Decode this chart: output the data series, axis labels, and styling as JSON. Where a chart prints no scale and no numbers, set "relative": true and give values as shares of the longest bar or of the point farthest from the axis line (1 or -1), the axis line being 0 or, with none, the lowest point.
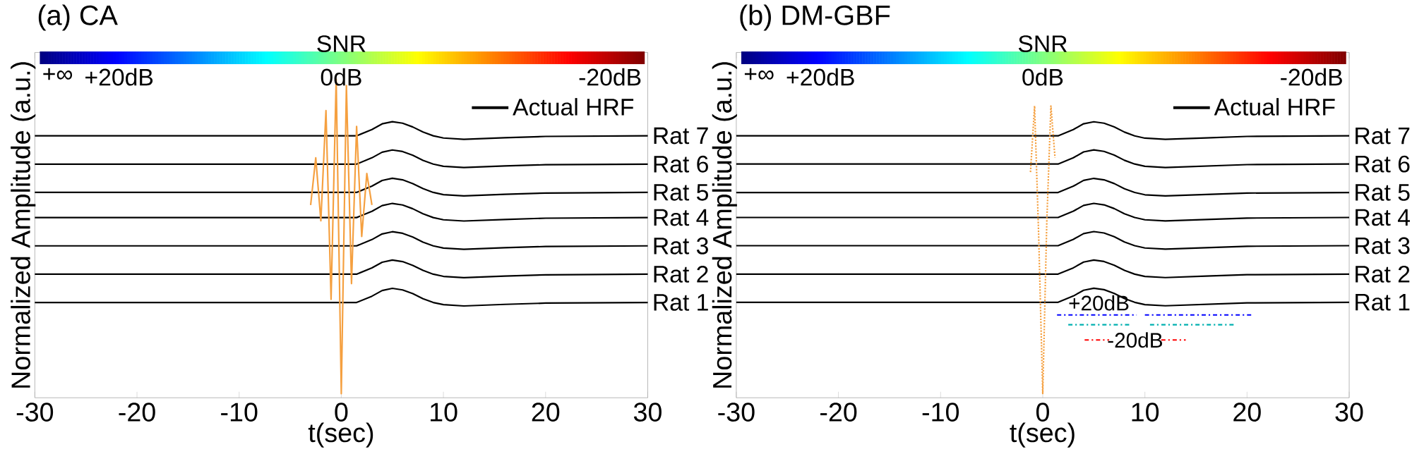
{
  "chart_data": [
    {
      "type": "line",
      "title": "(a) CA",
      "xlabel": "t(sec)",
      "ylabel": "Normalized Amplitude (a.u.)",
      "relative": true,
      "xlim": [
        -30,
        30
      ],
      "xticks": [
        -30,
        -20,
        -10,
        0,
        10,
        20,
        30
      ],
      "legend": "top right",
      "series": [
        {
          "name": "Actual HRF",
          "color": "#000000",
          "x": [
            -30,
            1.5,
            3,
            4,
            5,
            6,
            7,
            8,
            9,
            10,
            12,
            16,
            20,
            30
          ],
          "values": [
            0.82,
            0.82,
            0.84,
            0.858,
            0.865,
            0.86,
            0.848,
            0.832,
            0.82,
            0.813,
            0.809,
            0.814,
            0.818,
            0.82
          ]
        },
        {
          "color": "#000000",
          "x": [
            -30,
            1.5,
            3,
            4,
            5,
            6,
            7,
            8,
            9,
            10,
            12,
            16,
            20,
            30
          ],
          "values": [
            0.73,
            0.73,
            0.75,
            0.768,
            0.775,
            0.77,
            0.758,
            0.742,
            0.73,
            0.723,
            0.719,
            0.724,
            0.728,
            0.73
          ]
        },
        {
          "color": "#000000",
          "x": [
            -30,
            1.5,
            3,
            4,
            5,
            6,
            7,
            8,
            9,
            10,
            12,
            16,
            20,
            30
          ],
          "values": [
            0.64,
            0.64,
            0.66,
            0.678,
            0.685,
            0.68,
            0.668,
            0.652,
            0.64,
            0.633,
            0.629,
            0.634,
            0.638,
            0.64
          ]
        },
        {
          "color": "#000000",
          "x": [
            -30,
            1.5,
            3,
            4,
            5,
            6,
            7,
            8,
            9,
            10,
            12,
            16,
            20,
            30
          ],
          "values": [
            0.56,
            0.56,
            0.58,
            0.598,
            0.605,
            0.6,
            0.588,
            0.572,
            0.56,
            0.553,
            0.549,
            0.554,
            0.558,
            0.56
          ]
        },
        {
          "color": "#000000",
          "x": [
            -30,
            1.5,
            3,
            4,
            5,
            6,
            7,
            8,
            9,
            10,
            12,
            16,
            20,
            30
          ],
          "values": [
            0.47,
            0.47,
            0.49,
            0.508,
            0.515,
            0.51,
            0.498,
            0.482,
            0.47,
            0.463,
            0.459,
            0.464,
            0.468,
            0.47
          ]
        },
        {
          "color": "#000000",
          "x": [
            -30,
            1.5,
            3,
            4,
            5,
            6,
            7,
            8,
            9,
            10,
            12,
            16,
            20,
            30
          ],
          "values": [
            0.38,
            0.38,
            0.4,
            0.418,
            0.425,
            0.42,
            0.408,
            0.392,
            0.38,
            0.373,
            0.369,
            0.374,
            0.378,
            0.38
          ]
        },
        {
          "color": "#000000",
          "x": [
            -30,
            1.5,
            3,
            4,
            5,
            6,
            7,
            8,
            9,
            10,
            12,
            16,
            20,
            30
          ],
          "values": [
            0.29,
            0.29,
            0.31,
            0.328,
            0.335,
            0.33,
            0.318,
            0.302,
            0.29,
            0.283,
            0.279,
            0.284,
            0.288,
            0.29
          ]
        },
        {
          "color": "#f5a040",
          "line_style": "solid",
          "x": [
            -3,
            -2.5,
            -2,
            -1.5,
            -1,
            -0.5,
            0,
            0.5,
            1,
            1.5,
            2,
            2.5,
            3
          ],
          "values": [
            0.6,
            0.75,
            0.55,
            0.9,
            0.3,
            1,
            0,
            0.98,
            0.35,
            0.85,
            0.5,
            0.7,
            0.6
          ]
        }
      ],
      "annotations": [
        "SNR",
        "+∞",
        "+20dB",
        "0dB",
        "-20dB",
        "Rat 7",
        "Rat 6",
        "Rat 5",
        "Rat 4",
        "Rat 3",
        "Rat 2",
        "Rat 1"
      ]
    },
    {
      "type": "line",
      "title": "(b) DM-GBF",
      "xlabel": "t(sec)",
      "ylabel": "Normalized Amplitude (a.u.)",
      "relative": true,
      "xlim": [
        -30,
        30
      ],
      "xticks": [
        -30,
        -20,
        -10,
        0,
        10,
        20,
        30
      ],
      "legend": "top right",
      "series": [
        {
          "name": "Actual HRF",
          "color": "#000000",
          "x": [
            -30,
            1.5,
            3,
            4,
            5,
            6,
            7,
            8,
            9,
            10,
            12,
            16,
            20,
            30
          ],
          "values": [
            0.896,
            0.896,
            0.918,
            0.938,
            0.945,
            0.94,
            0.927,
            0.909,
            0.896,
            0.888,
            0.884,
            0.889,
            0.894,
            0.896
          ]
        },
        {
          "color": "#000000",
          "x": [
            -30,
            1.5,
            3,
            4,
            5,
            6,
            7,
            8,
            9,
            10,
            12,
            16,
            20,
            30
          ],
          "values": [
            0.798,
            0.798,
            0.82,
            0.84,
            0.847,
            0.842,
            0.829,
            0.811,
            0.798,
            0.79,
            0.786,
            0.791,
            0.796,
            0.798
          ]
        },
        {
          "color": "#000000",
          "x": [
            -30,
            1.5,
            3,
            4,
            5,
            6,
            7,
            8,
            9,
            10,
            12,
            16,
            20,
            30
          ],
          "values": [
            0.699,
            0.699,
            0.721,
            0.741,
            0.748,
            0.743,
            0.73,
            0.712,
            0.699,
            0.691,
            0.687,
            0.692,
            0.697,
            0.699
          ]
        },
        {
          "color": "#000000",
          "x": [
            -30,
            1.5,
            3,
            4,
            5,
            6,
            7,
            8,
            9,
            10,
            12,
            16,
            20,
            30
          ],
          "values": [
            0.612,
            0.612,
            0.634,
            0.654,
            0.661,
            0.656,
            0.643,
            0.625,
            0.612,
            0.604,
            0.6,
            0.605,
            0.61,
            0.612
          ]
        },
        {
          "color": "#000000",
          "x": [
            -30,
            1.5,
            3,
            4,
            5,
            6,
            7,
            8,
            9,
            10,
            12,
            16,
            20,
            30
          ],
          "values": [
            0.514,
            0.514,
            0.536,
            0.556,
            0.563,
            0.558,
            0.545,
            0.527,
            0.514,
            0.506,
            0.502,
            0.507,
            0.512,
            0.514
          ]
        },
        {
          "color": "#000000",
          "x": [
            -30,
            1.5,
            3,
            4,
            5,
            6,
            7,
            8,
            9,
            10,
            12,
            16,
            20,
            30
          ],
          "values": [
            0.415,
            0.415,
            0.437,
            0.457,
            0.464,
            0.459,
            0.446,
            0.428,
            0.415,
            0.407,
            0.403,
            0.408,
            0.413,
            0.415
          ]
        },
        {
          "color": "#000000",
          "x": [
            -30,
            1.5,
            3,
            4,
            5,
            6,
            7,
            8,
            9,
            10,
            12,
            16,
            20,
            30
          ],
          "values": [
            0.317,
            0.317,
            0.339,
            0.359,
            0.366,
            0.361,
            0.348,
            0.33,
            0.317,
            0.309,
            0.305,
            0.31,
            0.315,
            0.317
          ]
        },
        {
          "color": "#f5a040",
          "line_style": "dotted",
          "x": [
            -1.2,
            -0.8,
            -0.4,
            0,
            0.4,
            0.8,
            1.2
          ],
          "values": [
            0.77,
            1,
            0.55,
            0,
            0.6,
            1,
            0.82
          ]
        },
        {
          "color": "#0000ff",
          "line_style": "dashed",
          "x": [
            1.4,
            9.2
          ],
          "values": [
            0.273,
            0.273
          ]
        },
        {
          "color": "#0000ff",
          "line_style": "dashed",
          "x": [
            10,
            20.6
          ],
          "values": [
            0.273,
            0.273
          ]
        },
        {
          "color": "#00b0b0",
          "line_style": "dashed",
          "x": [
            2.5,
            8.5
          ],
          "values": [
            0.239,
            0.239
          ]
        },
        {
          "color": "#00b0b0",
          "line_style": "dashed",
          "x": [
            10.5,
            18.8
          ],
          "values": [
            0.239,
            0.239
          ]
        },
        {
          "color": "#ff0000",
          "line_style": "dashed",
          "x": [
            4.1,
            6.5
          ],
          "values": [
            0.186,
            0.186
          ]
        },
        {
          "color": "#ff0000",
          "line_style": "dashed",
          "x": [
            11.6,
            14
          ],
          "values": [
            0.186,
            0.186
          ]
        }
      ],
      "annotations": [
        "SNR",
        "+∞",
        "+20dB",
        "0dB",
        "-20dB",
        "Rat 7",
        "Rat 6",
        "Rat 5",
        "Rat 4",
        "Rat 3",
        "Rat 2",
        "Rat 1",
        "+20dB",
        "-20dB"
      ]
    }
  ]
}
